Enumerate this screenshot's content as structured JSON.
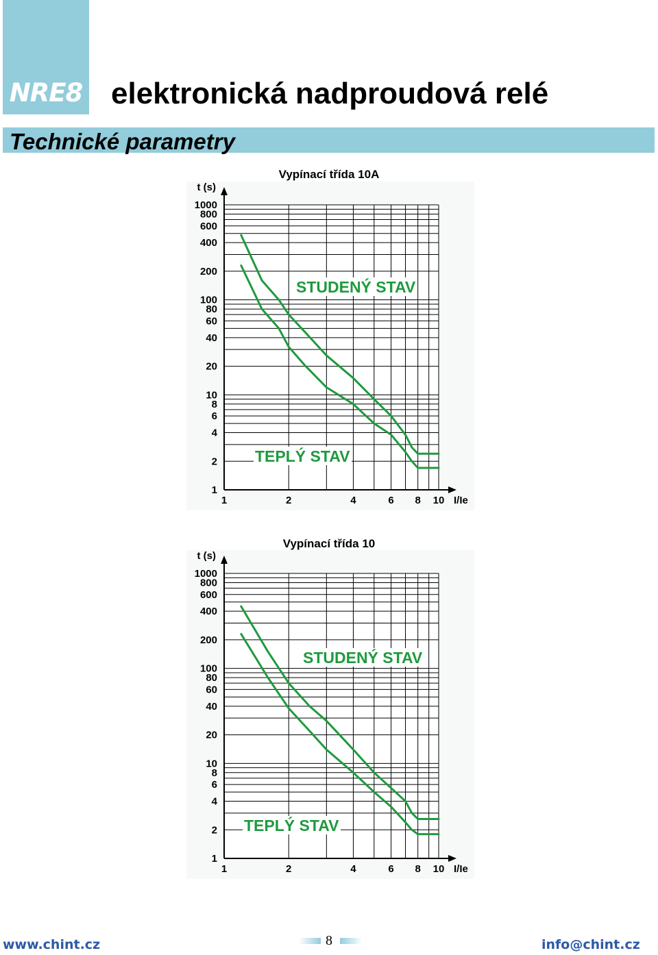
{
  "header": {
    "logo": "NRE8",
    "title": "elektronická nadproudová relé",
    "section": "Technické parametry"
  },
  "footer": {
    "website": "www.chint.cz",
    "email": "info@chint.cz",
    "page_number": "8"
  },
  "colors": {
    "accent": "#93ccdb",
    "curve": "#1e9a3e",
    "link": "#2d5aa6"
  },
  "chart_data": [
    {
      "type": "line",
      "title": "Vypínací třída 10A",
      "xlabel": "I/Ie",
      "ylabel": "t (s)",
      "x_scale": "log",
      "y_scale": "log",
      "xlim": [
        1,
        10
      ],
      "ylim": [
        1,
        1000
      ],
      "x_ticks": [
        "1",
        "2",
        "4",
        "6",
        "8",
        "10"
      ],
      "y_ticks": [
        "1",
        "2",
        "4",
        "6",
        "8",
        "10",
        "20",
        "40",
        "60",
        "80",
        "100",
        "200",
        "400",
        "600",
        "800",
        "1000"
      ],
      "grid": true,
      "series": [
        {
          "name": "STUDENÝ STAV",
          "x": [
            1.2,
            1.5,
            1.8,
            2.0,
            2.4,
            3.0,
            4.0,
            5.0,
            6.0,
            7.0,
            7.5,
            8.0,
            10.0
          ],
          "y": [
            480,
            160,
            100,
            70,
            45,
            26,
            15,
            9,
            6,
            3.8,
            2.8,
            2.4,
            2.4
          ]
        },
        {
          "name": "TEPLÝ STAV",
          "x": [
            1.2,
            1.5,
            1.8,
            2.0,
            2.4,
            3.0,
            4.0,
            5.0,
            6.0,
            7.0,
            7.5,
            8.0,
            10.0
          ],
          "y": [
            230,
            80,
            50,
            32,
            20,
            12,
            8,
            5,
            3.8,
            2.5,
            2.0,
            1.7,
            1.7
          ]
        }
      ]
    },
    {
      "type": "line",
      "title": "Vypínací třída 10",
      "xlabel": "I/Ie",
      "ylabel": "t (s)",
      "x_scale": "log",
      "y_scale": "log",
      "xlim": [
        1,
        10
      ],
      "ylim": [
        1,
        1000
      ],
      "x_ticks": [
        "1",
        "2",
        "4",
        "6",
        "8",
        "10"
      ],
      "y_ticks": [
        "1",
        "2",
        "4",
        "6",
        "8",
        "10",
        "20",
        "40",
        "60",
        "80",
        "100",
        "200",
        "400",
        "600",
        "800",
        "1000"
      ],
      "grid": true,
      "series": [
        {
          "name": "STUDENÝ STAV",
          "x": [
            1.2,
            1.6,
            2.0,
            2.5,
            3.0,
            4.0,
            5.0,
            6.0,
            7.0,
            7.5,
            8.0,
            10.0
          ],
          "y": [
            450,
            150,
            70,
            40,
            28,
            14,
            8,
            5.5,
            4.0,
            3.0,
            2.6,
            2.6
          ]
        },
        {
          "name": "TEPLÝ STAV",
          "x": [
            1.2,
            1.6,
            2.0,
            2.5,
            3.0,
            4.0,
            5.0,
            6.0,
            7.0,
            7.5,
            8.0,
            10.0
          ],
          "y": [
            230,
            80,
            38,
            22,
            14,
            8,
            5.0,
            3.5,
            2.4,
            2.0,
            1.8,
            1.8
          ]
        }
      ]
    }
  ]
}
